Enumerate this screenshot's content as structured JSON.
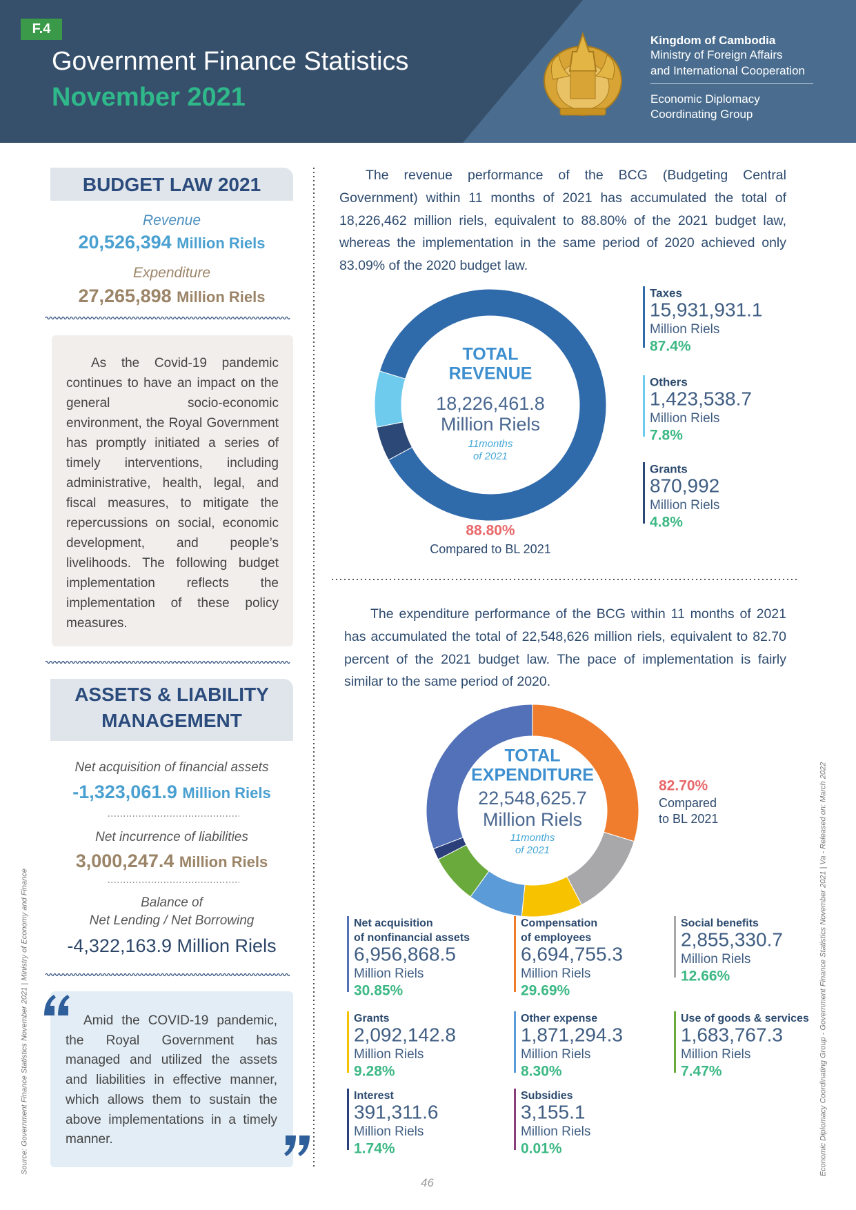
{
  "header": {
    "tag": "F.4",
    "title": "Government Finance Statistics",
    "subtitle": "November 2021",
    "org": [
      "Kingdom of Cambodia",
      "Ministry of Foreign Affairs",
      "and International Cooperation"
    ],
    "group": [
      "Economic Diplomacy",
      "Coordinating Group"
    ]
  },
  "budget_law": {
    "title": "BUDGET LAW 2021",
    "revenue_label": "Revenue",
    "revenue_value": "20,526,394",
    "revenue_unit": "Million Riels",
    "expenditure_label": "Expenditure",
    "expenditure_value": "27,265,898",
    "expenditure_unit": "Million Riels"
  },
  "intro": "As the Covid-19 pandemic continues to have an impact on the general socio-economic environment, the Royal Government has promptly initiated a series of timely interventions, including administrative, health, legal, and fiscal measures, to mitigate the repercussions on social, economic development, and people’s livelihoods. The following budget implementation reflects the implementation of these policy measures.",
  "assets": {
    "title": [
      "ASSETS & LIABILITY",
      "MANAGEMENT"
    ],
    "items": [
      {
        "label": [
          "Net acquisition of financial assets"
        ],
        "value": "-1,323,061.9",
        "unit": "Million Riels"
      },
      {
        "label": [
          "Net incurrence of liabilities"
        ],
        "value": "3,000,247.4",
        "unit": "Million Riels"
      },
      {
        "label": [
          "Balance of",
          "Net Lending / Net Borrowing"
        ],
        "value": "-4,322,163.9 Million Riels"
      }
    ]
  },
  "quote": "Amid the COVID-19 pandemic, the Royal Government has managed and utilized the assets and liabilities in effective manner, which allows them to sustain the above implementations in a timely manner.",
  "revenue_text": "The revenue performance of the BCG (Budgeting Central Government) within 11 months of 2021 has accumulated the total of 18,226,462 million riels, equivalent to 88.80% of the 2021 budget law, whereas the implementation in the same period of 2020 achieved only 83.09% of the 2020 budget law.",
  "expenditure_text": "The expenditure performance of the BCG within 11 months of 2021 has accumulated the total of 22,548,626 million riels, equivalent to 82.70 percent of the 2021 budget law. The pace of implementation is fairly similar to the same period of 2020.",
  "chart_data": [
    {
      "type": "donut",
      "title": [
        "TOTAL",
        "REVENUE"
      ],
      "total": "18,226,461.8",
      "total_unit": "Million Riels",
      "period": [
        "11months",
        "of 2021"
      ],
      "share_label": "88.80%",
      "share_note": [
        "Compared to BL 2021"
      ],
      "series": [
        {
          "name": [
            "Taxes"
          ],
          "color": "#2f6aaa",
          "amount": "15,931,931.1",
          "unit": "Million Riels",
          "percent": 87.4,
          "percent_label": "87.4%"
        },
        {
          "name": [
            "Others"
          ],
          "color": "#6fcbee",
          "amount": "1,423,538.7",
          "unit": "Million Riels",
          "percent": 7.8,
          "percent_label": "7.8%"
        },
        {
          "name": [
            "Grants"
          ],
          "color": "#2c4877",
          "amount": "870,992",
          "unit": "Million Riels",
          "percent": 4.8,
          "percent_label": "4.8%"
        }
      ]
    },
    {
      "type": "donut",
      "title": [
        "TOTAL",
        "EXPENDITURE"
      ],
      "total": "22,548,625.7",
      "total_unit": "Million Riels",
      "period": [
        "11months",
        "of 2021"
      ],
      "share_label": "82.70%",
      "share_note": [
        "Compared",
        "to BL 2021"
      ],
      "series": [
        {
          "name": [
            "Net acquisition",
            "of nonfinancial assets"
          ],
          "color": "#5271b8",
          "amount": "6,956,868.5",
          "unit": "Million Riels",
          "percent": 30.85,
          "percent_label": "30.85%"
        },
        {
          "name": [
            "Compensation",
            "of employees"
          ],
          "color": "#ef7d2d",
          "amount": "6,694,755.3",
          "unit": "Million Riels",
          "percent": 29.69,
          "percent_label": "29.69%"
        },
        {
          "name": [
            "Social benefits"
          ],
          "color": "#a8a8aa",
          "amount": "2,855,330.7",
          "unit": "Million Riels",
          "percent": 12.66,
          "percent_label": "12.66%"
        },
        {
          "name": [
            "Grants"
          ],
          "color": "#f7c200",
          "amount": "2,092,142.8",
          "unit": "Million Riels",
          "percent": 9.28,
          "percent_label": "9.28%"
        },
        {
          "name": [
            "Other expense"
          ],
          "color": "#5b9bd8",
          "amount": "1,871,294.3",
          "unit": "Million Riels",
          "percent": 8.3,
          "percent_label": "8.30%"
        },
        {
          "name": [
            "Use of goods & services"
          ],
          "color": "#6aaa3c",
          "amount": "1,683,767.3",
          "unit": "Million Riels",
          "percent": 7.47,
          "percent_label": "7.47%"
        },
        {
          "name": [
            "Interest"
          ],
          "color": "#2b3f7a",
          "amount": "391,311.6",
          "unit": "Million Riels",
          "percent": 1.74,
          "percent_label": "1.74%"
        },
        {
          "name": [
            "Subsidies"
          ],
          "color": "#8a3e7a",
          "amount": "3,155.1",
          "unit": "Million Riels",
          "percent": 0.01,
          "percent_label": "0.01%"
        }
      ]
    }
  ],
  "footer": {
    "page": "46",
    "source": "Source: Government Finance Statistics November 2021 | Ministry of Economy and Finance",
    "release": "Economic Diplomacy Coordinating Group - Government Finance Statistics November 2021 | Va -  Released on: March 2022"
  }
}
